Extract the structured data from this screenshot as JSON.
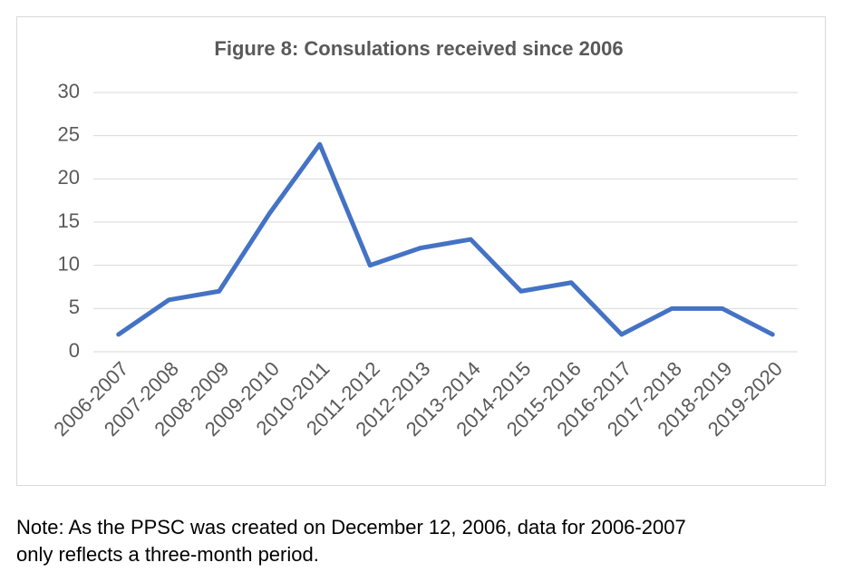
{
  "chart_data": {
    "type": "line",
    "title": "Figure 8: Consulations received since 2006",
    "categories": [
      "2006-2007",
      "2007-2008",
      "2008-2009",
      "2009-2010",
      "2010-2011",
      "2011-2012",
      "2012-2013",
      "2013-2014",
      "2014-2015",
      "2015-2016",
      "2016-2017",
      "2017-2018",
      "2018-2019",
      "2019-2020"
    ],
    "values": [
      2,
      6,
      7,
      16,
      24,
      10,
      12,
      13,
      7,
      8,
      2,
      5,
      5,
      2
    ],
    "color": "#4472c4",
    "ylim": [
      0,
      30
    ],
    "yticks": [
      0,
      5,
      10,
      15,
      20,
      25,
      30
    ],
    "grid": true
  },
  "note": [
    "Note: As the PPSC was created on December 12, 2006, data for 2006-2007",
    "only reflects a three-month period."
  ]
}
